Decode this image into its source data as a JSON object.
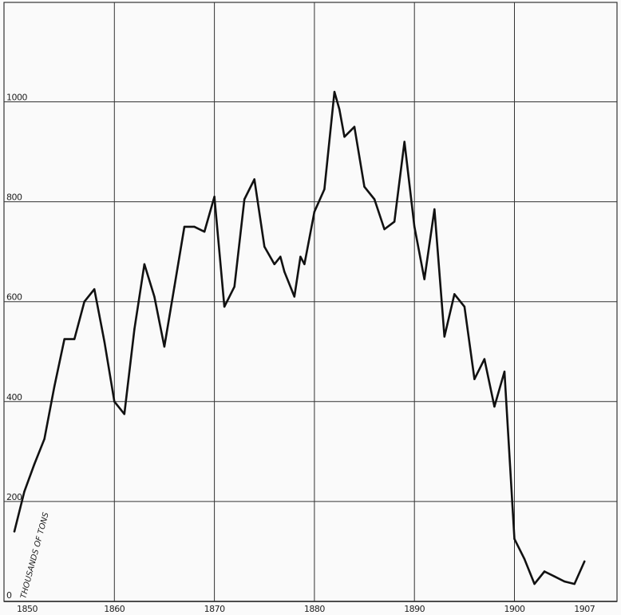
{
  "chart_data": {
    "type": "line",
    "title": "",
    "xlabel": "",
    "ylabel": "THOUSANDS OF TONS",
    "xlim": [
      1850,
      1908
    ],
    "ylim": [
      0,
      1100
    ],
    "grid": true,
    "x_ticks": [
      "1850",
      "1860",
      "1870",
      "1880",
      "1890",
      "1900",
      "1907"
    ],
    "y_ticks": [
      "0",
      "200",
      "400",
      "600",
      "800",
      "1000"
    ],
    "x_tick_values": [
      1850,
      1860,
      1870,
      1880,
      1890,
      1900,
      1907
    ],
    "y_tick_values": [
      0,
      200,
      400,
      600,
      800,
      1000
    ],
    "colors": {
      "line": "#111111",
      "grid": "#333333",
      "background": "#fafafa"
    },
    "series": [
      {
        "x": [
          1850,
          1851,
          1852,
          1853,
          1854,
          1855,
          1856,
          1857,
          1858,
          1859,
          1860,
          1861,
          1862,
          1863,
          1864,
          1865,
          1866,
          1867,
          1868,
          1869,
          1870,
          1871,
          1872,
          1873,
          1874,
          1875,
          1876,
          1876.6,
          1877,
          1878,
          1878.6,
          1879,
          1880,
          1881,
          1882,
          1882.5,
          1883,
          1884,
          1885,
          1886,
          1887,
          1888,
          1889,
          1890,
          1891,
          1892,
          1893,
          1894,
          1895,
          1896,
          1897,
          1898,
          1899,
          1900,
          1901,
          1902,
          1903,
          1904,
          1905,
          1906,
          1907
        ],
        "values": [
          140,
          220,
          275,
          325,
          430,
          525,
          525,
          600,
          625,
          520,
          400,
          375,
          545,
          675,
          610,
          510,
          630,
          750,
          750,
          740,
          810,
          590,
          630,
          805,
          845,
          710,
          675,
          690,
          660,
          610,
          690,
          675,
          780,
          825,
          1020,
          985,
          930,
          950,
          830,
          805,
          745,
          760,
          920,
          750,
          645,
          785,
          530,
          615,
          590,
          445,
          485,
          390,
          460,
          125,
          85,
          35,
          60,
          50,
          40,
          35,
          80
        ]
      }
    ]
  }
}
